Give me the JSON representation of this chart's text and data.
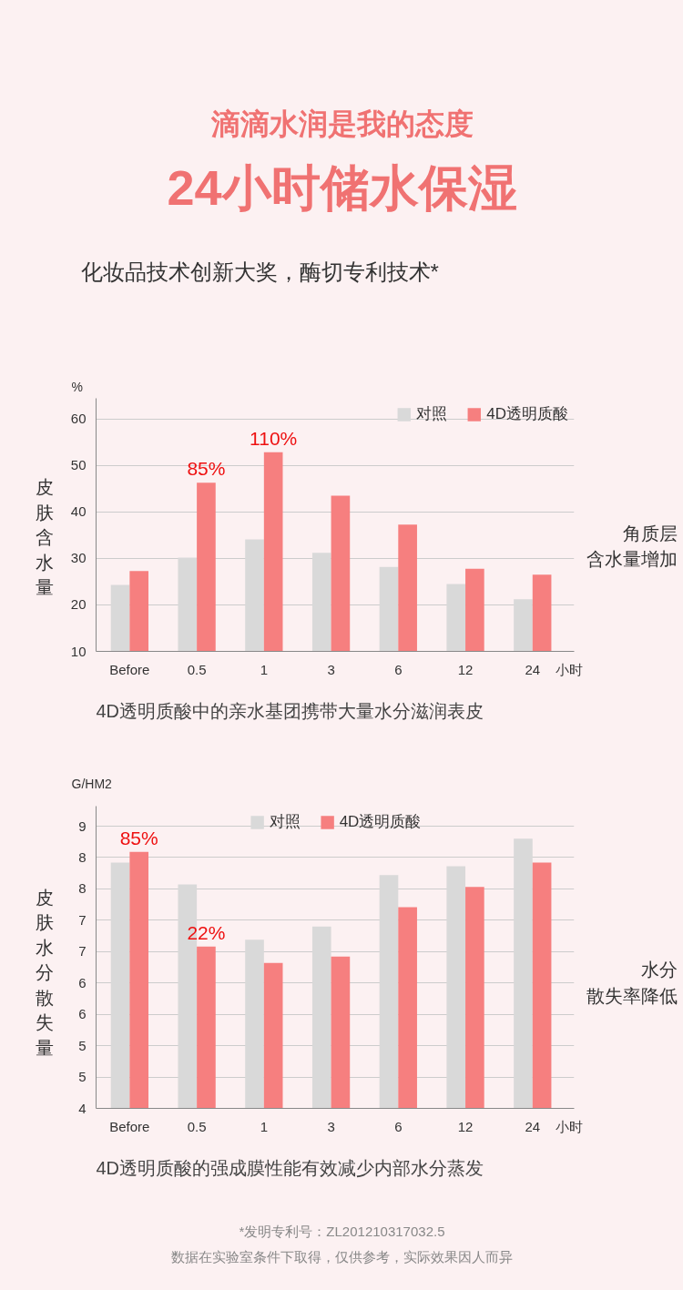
{
  "chart_data": [
    {
      "type": "bar",
      "title": "滴滴水润是我的态度",
      "subtitle": "24小时储水保湿",
      "ylabel": "皮肤含水量",
      "xlabel": "小时",
      "categories": [
        "Before",
        "0.5",
        "1",
        "3",
        "6",
        "12",
        "24"
      ],
      "series": [
        {
          "name": "对照",
          "color": "#d9d9d9",
          "values": [
            24.3,
            30.2,
            34.1,
            31.2,
            28.2,
            24.5,
            21.2
          ]
        },
        {
          "name": "4D透明质酸",
          "color": "#f67f7f",
          "values": [
            27.3,
            46.3,
            52.9,
            43.5,
            37.3,
            27.8,
            26.5
          ]
        }
      ],
      "ylim": [
        10,
        64.5
      ],
      "yticks": [
        10,
        20,
        30,
        40,
        50,
        60
      ],
      "grid": "y",
      "legend": "top right",
      "annotations": [
        "化妆品技术创新大奖，酶切专利技术*",
        "%",
        "角质层含水量增加",
        "4D透明质酸中的亲水基团携带大量水分滋润表皮",
        {
          "text": "85%",
          "x": "0.5",
          "y": 46.3
        },
        {
          "text": "110%",
          "x": "1",
          "y": 52.9
        }
      ]
    },
    {
      "type": "bar",
      "ylabel": "皮肤水分散失量",
      "xlabel": "小时",
      "categories": [
        "Before",
        "0.5",
        "1",
        "3",
        "6",
        "12",
        "24"
      ],
      "series": [
        {
          "name": "对照",
          "color": "#d9d9d9",
          "values": [
            7.92,
            7.57,
            6.69,
            6.9,
            7.72,
            7.86,
            8.3
          ]
        },
        {
          "name": "4D透明质酸",
          "color": "#f67f7f",
          "values": [
            8.09,
            6.58,
            6.32,
            6.42,
            7.21,
            7.53,
            7.92
          ]
        }
      ],
      "ylim": [
        4,
        8.82
      ],
      "yticks": [
        4,
        {
          "value": 4.5,
          "label": "5"
        },
        5,
        {
          "value": 5.5,
          "label": "6"
        },
        6,
        {
          "value": 6.5,
          "label": "7"
        },
        7,
        {
          "value": 7.5,
          "label": "8"
        },
        8,
        {
          "value": 8.5,
          "label": "9"
        }
      ],
      "grid": "y",
      "legend": "top",
      "annotations": [
        "G/HM2",
        "水分散失率降低",
        "4D透明质酸的强成膜性能有效减少内部水分蒸发",
        "*发明专利号：ZL201210317032.5",
        "数据在实验室条件下取得，仅供参考，实际效果因人而异",
        {
          "text": "85%",
          "x": "Before",
          "y": 8.09
        },
        {
          "text": "22%",
          "x": "0.5",
          "y": 6.58
        }
      ]
    }
  ]
}
